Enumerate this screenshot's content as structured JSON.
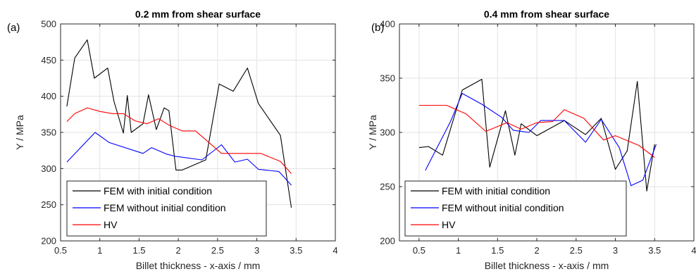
{
  "chart_data": [
    {
      "type": "line",
      "panel_label": "(a)",
      "title": "0.2 mm from shear surface",
      "xlabel": "Billet thickness - x-axis / mm",
      "ylabel": "Y / MPa",
      "xlim": [
        0.5,
        4
      ],
      "ylim": [
        200,
        500
      ],
      "xticks": [
        0.5,
        1,
        1.5,
        2,
        2.5,
        3,
        3.5,
        4
      ],
      "xtick_labels": [
        "0.5",
        "1",
        "1.5",
        "2",
        "2.5",
        "3",
        "3.5",
        "4"
      ],
      "yticks": [
        200,
        250,
        300,
        350,
        400,
        450,
        500
      ],
      "ytick_labels": [
        "200",
        "250",
        "300",
        "350",
        "400",
        "450",
        "500"
      ],
      "grid": true,
      "legend_position": "bottom-left",
      "series": [
        {
          "name": "FEM with initial condition",
          "color": "#000000",
          "x": [
            0.58,
            0.68,
            0.84,
            0.93,
            1.1,
            1.18,
            1.3,
            1.35,
            1.4,
            1.55,
            1.62,
            1.72,
            1.82,
            1.88,
            1.97,
            2.05,
            2.35,
            2.52,
            2.7,
            2.88,
            3.02,
            3.3,
            3.44
          ],
          "y": [
            386,
            453,
            478,
            425,
            439,
            393,
            349,
            401,
            350,
            362,
            402,
            354,
            384,
            380,
            298,
            298,
            312,
            417,
            407,
            439,
            390,
            346,
            246
          ]
        },
        {
          "name": "FEM without initial condition",
          "color": "#0000ff",
          "x": [
            0.58,
            0.94,
            1.12,
            1.55,
            1.66,
            1.85,
            1.96,
            2.3,
            2.55,
            2.72,
            2.88,
            3.02,
            3.28,
            3.44
          ],
          "y": [
            309,
            350,
            336,
            321,
            329,
            320,
            317,
            312,
            333,
            309,
            313,
            299,
            296,
            277
          ]
        },
        {
          "name": "HV",
          "color": "#ff0000",
          "x": [
            0.58,
            0.68,
            0.84,
            1.0,
            1.16,
            1.3,
            1.45,
            1.6,
            1.75,
            1.88,
            2.05,
            2.22,
            2.55,
            2.8,
            3.05,
            3.3,
            3.44
          ],
          "y": [
            365,
            376,
            384,
            379,
            376,
            376,
            366,
            362,
            369,
            360,
            352,
            352,
            321,
            321,
            321,
            310,
            293
          ]
        }
      ]
    },
    {
      "type": "line",
      "panel_label": "(b)",
      "title": "0.4 mm from shear surface",
      "xlabel": "Billet thickness - x-axis / mm",
      "ylabel": "Y / MPa",
      "xlim": [
        0.25,
        4
      ],
      "ylim": [
        200,
        400
      ],
      "xticks": [
        0.5,
        1,
        1.5,
        2,
        2.5,
        3,
        3.5,
        4
      ],
      "xtick_labels": [
        "0.5",
        "1",
        "1.5",
        "2",
        "2.5",
        "3",
        "3.5",
        "4"
      ],
      "yticks": [
        200,
        250,
        300,
        350,
        400
      ],
      "ytick_labels": [
        "200",
        "250",
        "300",
        "350",
        "400"
      ],
      "grid": true,
      "legend_position": "bottom-left",
      "series": [
        {
          "name": "FEM with initial condition",
          "color": "#000000",
          "x": [
            0.5,
            0.62,
            0.8,
            1.05,
            1.3,
            1.4,
            1.6,
            1.72,
            1.8,
            2.0,
            2.35,
            2.62,
            2.82,
            3.0,
            3.15,
            3.28,
            3.4,
            3.5
          ],
          "y": [
            286,
            287,
            279,
            339,
            349,
            268,
            320,
            279,
            308,
            297,
            311,
            298,
            313,
            266,
            283,
            347,
            246,
            289
          ]
        },
        {
          "name": "FEM without initial condition",
          "color": "#0000ff",
          "x": [
            0.58,
            0.9,
            1.05,
            1.3,
            1.55,
            1.7,
            1.9,
            2.05,
            2.35,
            2.62,
            2.82,
            3.05,
            3.2,
            3.35,
            3.52
          ],
          "y": [
            265,
            310,
            336,
            326,
            314,
            302,
            300,
            311,
            311,
            291,
            312,
            286,
            251,
            256,
            289
          ]
        },
        {
          "name": "HV",
          "color": "#ff0000",
          "x": [
            0.5,
            0.85,
            1.1,
            1.35,
            1.62,
            1.8,
            2.0,
            2.2,
            2.35,
            2.6,
            2.85,
            3.0,
            3.3,
            3.5
          ],
          "y": [
            325,
            325,
            317,
            301,
            309,
            303,
            309,
            310,
            321,
            313,
            293,
            297,
            288,
            277
          ]
        }
      ]
    }
  ]
}
